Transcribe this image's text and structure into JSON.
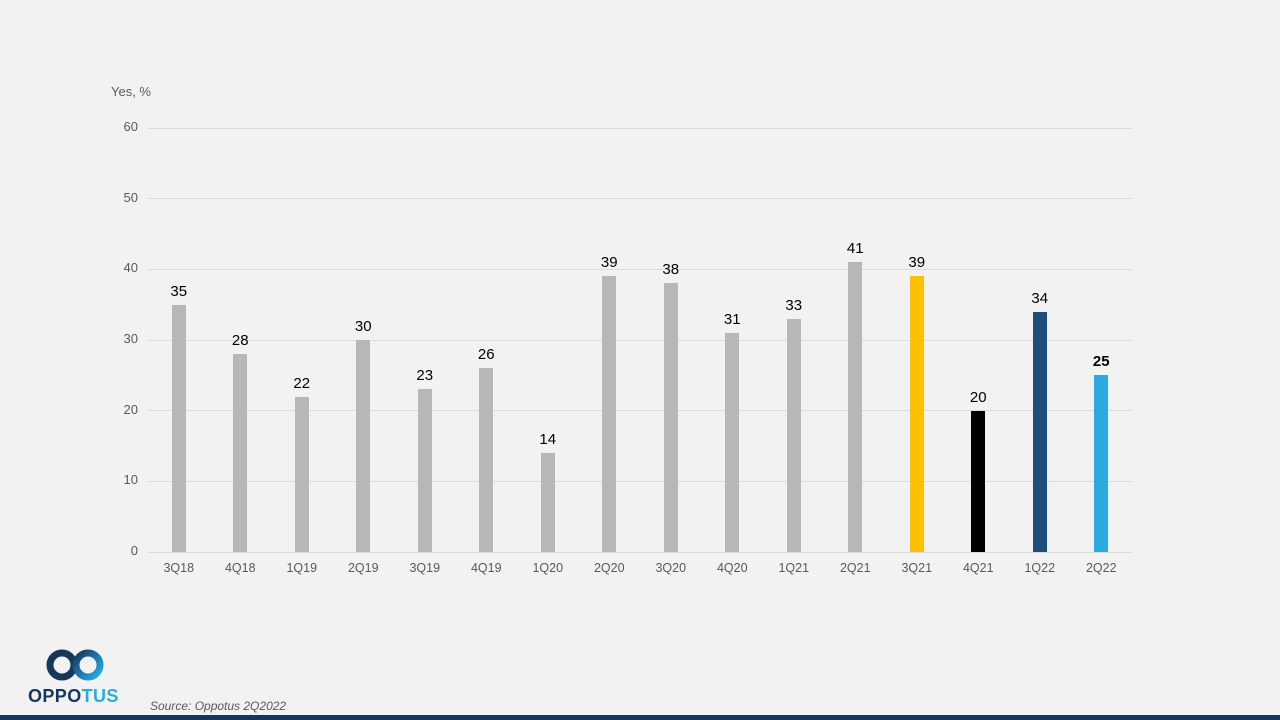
{
  "page": {
    "background_color": "#f2f2f2",
    "footer_bar_color": "#16365c"
  },
  "logo": {
    "text_primary": "OPPO",
    "text_secondary": "TUS",
    "primary_color": "#16365c",
    "secondary_color": "#29abe2"
  },
  "source_note": "Source: Oppotus 2Q2022",
  "chart_data": {
    "type": "bar",
    "title": "",
    "ylabel": "Yes, %",
    "xlabel": "",
    "ylim": [
      0,
      60
    ],
    "yticks": [
      0,
      10,
      20,
      30,
      40,
      50,
      60
    ],
    "grid": true,
    "legend": "none",
    "categories": [
      "3Q18",
      "4Q18",
      "1Q19",
      "2Q19",
      "3Q19",
      "4Q19",
      "1Q20",
      "2Q20",
      "3Q20",
      "4Q20",
      "1Q21",
      "2Q21",
      "3Q21",
      "4Q21",
      "1Q22",
      "2Q22"
    ],
    "values": [
      35,
      28,
      22,
      30,
      23,
      26,
      14,
      39,
      38,
      31,
      33,
      41,
      39,
      20,
      34,
      25
    ],
    "bar_colors": [
      "#b7b7b7",
      "#b7b7b7",
      "#b7b7b7",
      "#b7b7b7",
      "#b7b7b7",
      "#b7b7b7",
      "#b7b7b7",
      "#b7b7b7",
      "#b7b7b7",
      "#b7b7b7",
      "#b7b7b7",
      "#b7b7b7",
      "#ffc000",
      "#000000",
      "#1f4e79",
      "#29abe2"
    ],
    "bold_value_labels": [
      false,
      false,
      false,
      false,
      false,
      false,
      false,
      false,
      false,
      false,
      false,
      false,
      false,
      false,
      false,
      true
    ],
    "default_bar_color": "#b7b7b7",
    "gridline_color": "#dcdcdc"
  }
}
